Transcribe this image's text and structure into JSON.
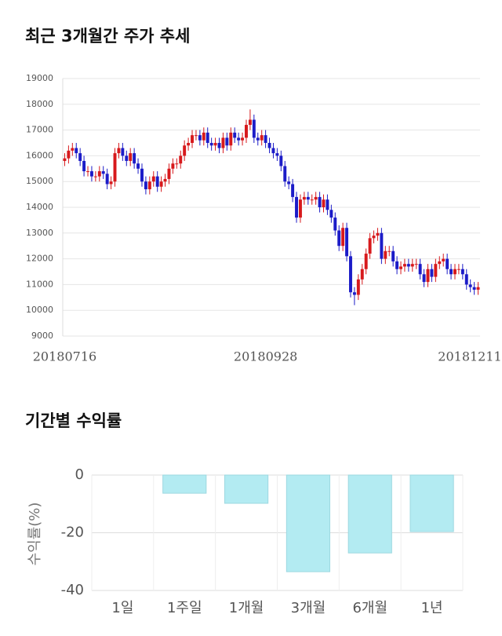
{
  "chart_data": [
    {
      "type": "candlestick",
      "title": "최근 3개월간 주가 추세",
      "categories": [
        "20180716",
        null,
        null,
        null,
        null,
        null,
        null,
        null,
        null,
        null,
        null,
        null,
        null,
        null,
        null,
        null,
        null,
        null,
        null,
        null,
        null,
        null,
        null,
        null,
        null,
        null,
        null,
        null,
        null,
        null,
        null,
        null,
        null,
        null,
        null,
        null,
        null,
        null,
        null,
        null,
        null,
        null,
        null,
        null,
        null,
        null,
        null,
        null,
        null,
        null,
        null,
        null,
        "20180928",
        null,
        null,
        null,
        null,
        null,
        null,
        null,
        null,
        null,
        null,
        null,
        null,
        null,
        null,
        null,
        null,
        null,
        null,
        null,
        null,
        null,
        null,
        null,
        null,
        null,
        null,
        null,
        null,
        null,
        null,
        null,
        null,
        null,
        null,
        null,
        null,
        null,
        null,
        null,
        null,
        null,
        null,
        null,
        null,
        null,
        null,
        null,
        null,
        null,
        null,
        null,
        null,
        null,
        null,
        "20181211"
      ],
      "open": [
        15800,
        15900,
        16200,
        16300,
        16100,
        15800,
        15400,
        15400,
        15200,
        15200,
        15400,
        15300,
        14900,
        15000,
        16100,
        16300,
        16000,
        15800,
        16100,
        15700,
        15500,
        15000,
        14700,
        15000,
        15200,
        14800,
        15000,
        15100,
        15500,
        15700,
        15700,
        16000,
        16400,
        16500,
        16800,
        16800,
        16600,
        16900,
        16500,
        16400,
        16500,
        16300,
        16700,
        16400,
        16900,
        16700,
        16600,
        16700,
        17200,
        17400,
        16700,
        16600,
        16800,
        16500,
        16300,
        16100,
        16000,
        15600,
        15000,
        14900,
        14400,
        13600,
        14300,
        14400,
        14300,
        14300,
        14400,
        14000,
        14300,
        13900,
        13600,
        13100,
        12500,
        13200,
        12100,
        10700,
        10600,
        11200,
        11600,
        12200,
        12800,
        12900,
        13000,
        12000,
        12300,
        12300,
        11900,
        11600,
        11700,
        11800,
        11700,
        11800,
        11800,
        11400,
        11100,
        11600,
        11300,
        11800,
        11900,
        12000,
        11600,
        11400,
        11600,
        11600,
        11400,
        11000,
        10900,
        10800
      ],
      "high": [
        16100,
        16400,
        16500,
        16500,
        16300,
        16000,
        15600,
        15600,
        15400,
        15600,
        15600,
        15500,
        15200,
        16300,
        16500,
        16500,
        16200,
        16300,
        16300,
        15900,
        15700,
        15200,
        15200,
        15400,
        15400,
        15200,
        15300,
        15700,
        15900,
        15900,
        16200,
        16600,
        16700,
        17000,
        17000,
        17000,
        17100,
        17100,
        16700,
        16700,
        16700,
        16900,
        16900,
        17100,
        17100,
        16900,
        16900,
        17400,
        17800,
        17600,
        16900,
        17000,
        17000,
        16700,
        16500,
        16300,
        16200,
        15800,
        15200,
        15100,
        14600,
        14500,
        14600,
        14600,
        14500,
        14600,
        14600,
        14500,
        14500,
        14100,
        13800,
        13300,
        13400,
        13400,
        12300,
        10900,
        11400,
        11800,
        12400,
        13000,
        13100,
        13200,
        13200,
        12500,
        12500,
        12500,
        12100,
        11900,
        12000,
        12000,
        12000,
        12000,
        12000,
        11600,
        11800,
        11800,
        12000,
        12100,
        12200,
        12200,
        11800,
        11800,
        11800,
        11800,
        11600,
        11200,
        11100,
        11100
      ],
      "low": [
        15600,
        15700,
        16000,
        15900,
        15600,
        15200,
        15200,
        15000,
        15000,
        15000,
        15100,
        14700,
        14700,
        14800,
        15900,
        15800,
        15600,
        15600,
        15500,
        15300,
        14800,
        14500,
        14500,
        14800,
        14600,
        14600,
        14800,
        14900,
        15300,
        15500,
        15500,
        15800,
        16200,
        16300,
        16600,
        16400,
        16400,
        16300,
        16200,
        16200,
        16100,
        16100,
        16200,
        16200,
        16500,
        16400,
        16400,
        16500,
        17000,
        16500,
        16400,
        16400,
        16300,
        16100,
        15900,
        15800,
        15400,
        14800,
        14700,
        14200,
        13400,
        13400,
        14100,
        14100,
        14100,
        14100,
        13800,
        13800,
        13700,
        13400,
        12900,
        12300,
        12300,
        11900,
        10500,
        10200,
        10400,
        11000,
        11400,
        12000,
        12600,
        12700,
        11800,
        11800,
        12100,
        11700,
        11400,
        11400,
        11500,
        11500,
        11500,
        11600,
        11200,
        10900,
        10900,
        11100,
        11100,
        11600,
        11700,
        11400,
        11200,
        11200,
        11400,
        11200,
        10800,
        10700,
        10600,
        10600
      ],
      "close": [
        15900,
        16200,
        16300,
        16100,
        15800,
        15400,
        15400,
        15200,
        15200,
        15400,
        15300,
        14900,
        15000,
        16100,
        16300,
        16000,
        15800,
        16100,
        15700,
        15500,
        15000,
        14700,
        15000,
        15200,
        14800,
        15000,
        15100,
        15500,
        15700,
        15700,
        16000,
        16400,
        16500,
        16800,
        16800,
        16600,
        16900,
        16500,
        16400,
        16500,
        16300,
        16700,
        16400,
        16900,
        16700,
        16600,
        16700,
        17200,
        17400,
        16700,
        16600,
        16800,
        16500,
        16300,
        16100,
        16000,
        15600,
        15000,
        14900,
        14400,
        13600,
        14300,
        14400,
        14300,
        14300,
        14400,
        14000,
        14300,
        13900,
        13600,
        13100,
        12500,
        13200,
        12100,
        10700,
        10600,
        11200,
        11600,
        12200,
        12800,
        12900,
        13000,
        12000,
        12300,
        12300,
        11900,
        11600,
        11700,
        11800,
        11700,
        11800,
        11800,
        11400,
        11100,
        11600,
        11300,
        11800,
        11900,
        12000,
        11600,
        11400,
        11600,
        11600,
        11400,
        11000,
        10900,
        10800,
        10900
      ],
      "up_color": "#d7191c",
      "down_color": "#1c1cc8",
      "ylim": [
        9000,
        19000
      ],
      "yticks": [
        9000,
        10000,
        11000,
        12000,
        13000,
        14000,
        15000,
        16000,
        17000,
        18000,
        19000
      ],
      "grid": true
    },
    {
      "type": "bar",
      "title": "기간별 수익률",
      "y_label": "수익률(%)",
      "categories": [
        "1일",
        "1주일",
        "1개월",
        "3개월",
        "6개월",
        "1년"
      ],
      "values": [
        0,
        -6.3,
        -9.8,
        -33.5,
        -27,
        -19.6
      ],
      "color": "#b3ebf2",
      "ylim": [
        -40,
        0
      ],
      "yticks": [
        0,
        -20,
        -40
      ],
      "grid": true
    }
  ]
}
